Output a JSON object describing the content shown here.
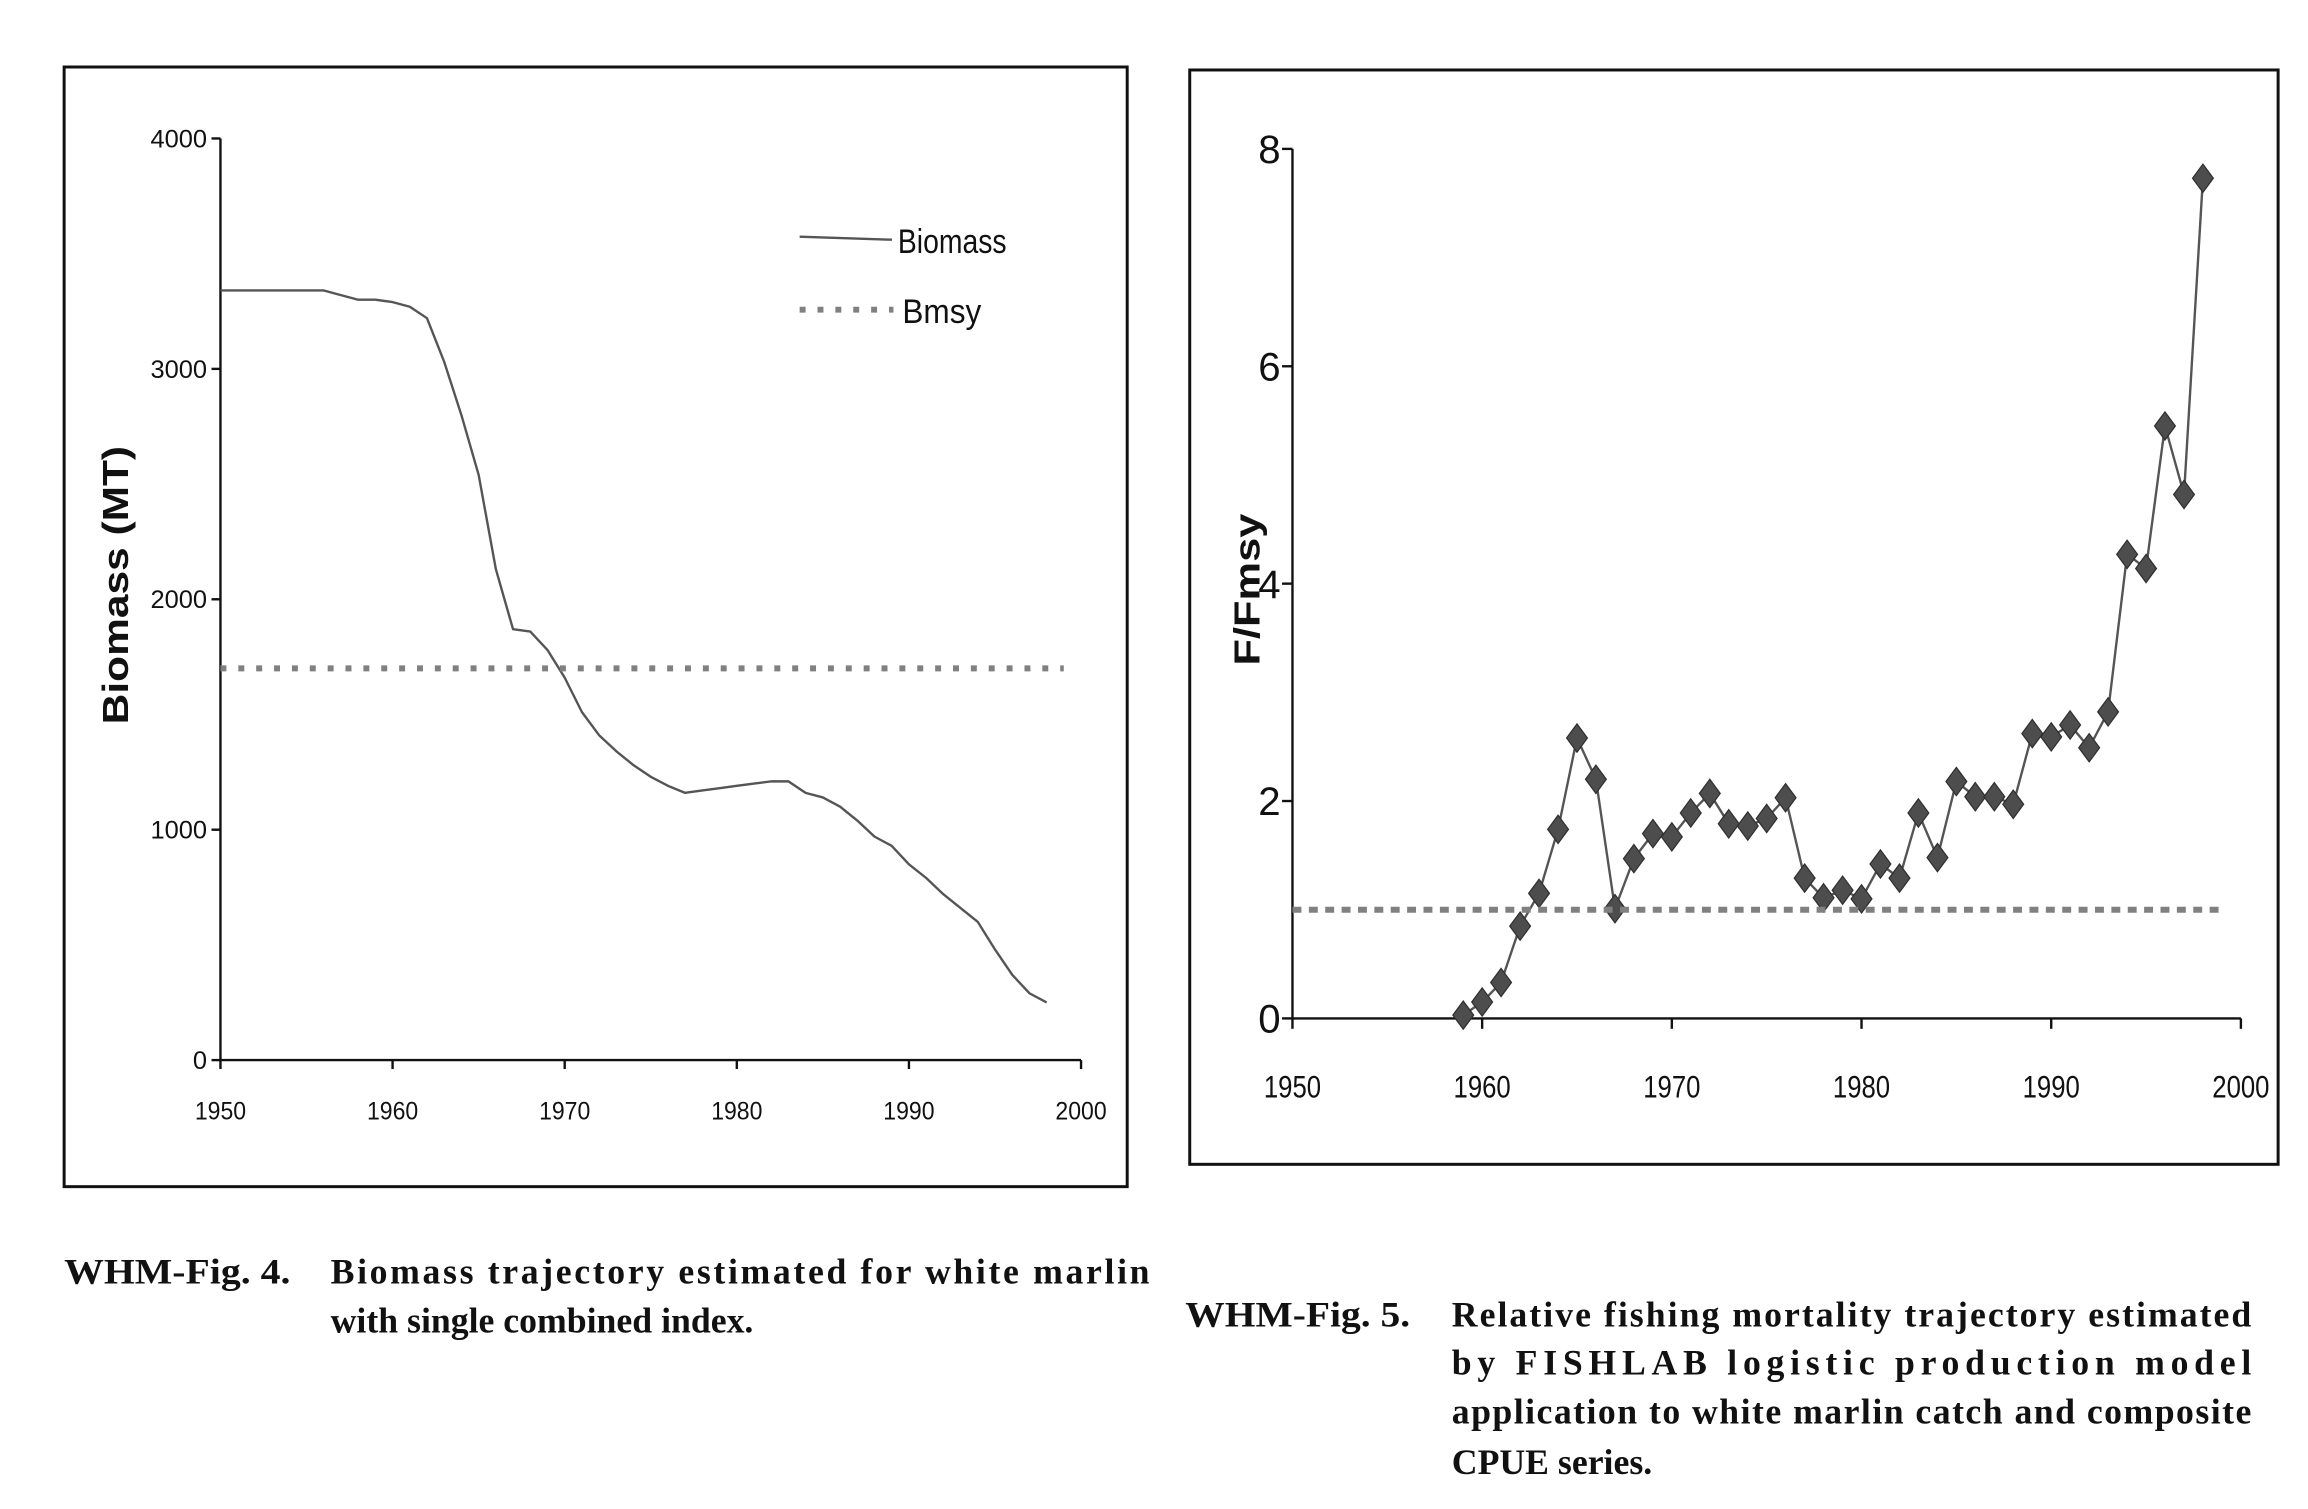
{
  "chart_data": [
    {
      "type": "line",
      "ylabel": "Biomass (MT)",
      "xlim": [
        1950,
        2000
      ],
      "ylim": [
        0,
        4000
      ],
      "x_ticks": [
        1950,
        1960,
        1970,
        1980,
        1990,
        2000
      ],
      "y_ticks": [
        4000,
        3000,
        2000,
        1000,
        0
      ],
      "grid": false,
      "legend": "top-right",
      "series": [
        {
          "name": "Biomass",
          "line_style": "solid",
          "marker": "none",
          "color": "#555555",
          "x": [
            1950,
            1951,
            1952,
            1953,
            1954,
            1955,
            1956,
            1957,
            1958,
            1959,
            1960,
            1961,
            1962,
            1963,
            1964,
            1965,
            1966,
            1967,
            1968,
            1969,
            1970,
            1971,
            1972,
            1973,
            1974,
            1975,
            1976,
            1977,
            1978,
            1979,
            1980,
            1981,
            1982,
            1983,
            1984,
            1985,
            1986,
            1987,
            1988,
            1989,
            1990,
            1991,
            1992,
            1993,
            1994,
            1995,
            1996,
            1997,
            1998
          ],
          "y": [
            3340,
            3340,
            3340,
            3340,
            3340,
            3340,
            3340,
            3320,
            3300,
            3300,
            3290,
            3270,
            3220,
            3030,
            2800,
            2540,
            2130,
            1870,
            1860,
            1780,
            1660,
            1510,
            1410,
            1340,
            1280,
            1230,
            1190,
            1160,
            1170,
            1180,
            1190,
            1200,
            1210,
            1210,
            1160,
            1140,
            1100,
            1040,
            970,
            930,
            850,
            790,
            720,
            660,
            600,
            480,
            370,
            290,
            250
          ]
        },
        {
          "name": "Bmsy",
          "line_style": "dotted",
          "marker": "none",
          "color": "#808080",
          "x": [
            1950,
            1999
          ],
          "y": [
            1700,
            1700
          ]
        }
      ]
    },
    {
      "type": "line",
      "ylabel": "F/Fmsy",
      "xlim": [
        1950,
        2000
      ],
      "ylim": [
        0,
        8
      ],
      "x_ticks": [
        1950,
        1960,
        1970,
        1980,
        1990,
        2000
      ],
      "y_ticks": [
        8,
        6,
        4,
        2,
        0
      ],
      "grid": false,
      "legend": "none",
      "series": [
        {
          "line_style": "solid",
          "marker": "diamond",
          "color": "#4d4d4d",
          "x": [
            1959,
            1960,
            1961,
            1962,
            1963,
            1964,
            1965,
            1966,
            1967,
            1968,
            1969,
            1970,
            1971,
            1972,
            1973,
            1974,
            1975,
            1976,
            1977,
            1978,
            1979,
            1980,
            1981,
            1982,
            1983,
            1984,
            1985,
            1986,
            1987,
            1988,
            1989,
            1990,
            1991,
            1992,
            1993,
            1994,
            1995,
            1996,
            1997,
            1998
          ],
          "y": [
            0.03,
            0.15,
            0.33,
            0.85,
            1.15,
            1.74,
            2.58,
            2.2,
            1.01,
            1.47,
            1.7,
            1.67,
            1.89,
            2.07,
            1.79,
            1.77,
            1.84,
            2.03,
            1.29,
            1.11,
            1.18,
            1.1,
            1.42,
            1.29,
            1.89,
            1.48,
            2.18,
            2.04,
            2.04,
            1.97,
            2.62,
            2.59,
            2.7,
            2.49,
            2.82,
            4.27,
            4.14,
            5.45,
            4.82,
            7.73
          ]
        },
        {
          "line_style": "dotted",
          "marker": "none",
          "color": "#808080",
          "x": [
            1950,
            1999
          ],
          "y": [
            1,
            1
          ]
        }
      ]
    }
  ],
  "captions": [
    {
      "label": "WHM-Fig. 4.",
      "lines": [
        "Biomass trajectory estimated for white marlin",
        "with single combined index."
      ]
    },
    {
      "label": "WHM-Fig. 5.",
      "lines": [
        "Relative fishing mortality trajectory estimated",
        "by FISHLAB logistic production model",
        "application to white marlin catch and composite",
        "CPUE series."
      ]
    }
  ]
}
